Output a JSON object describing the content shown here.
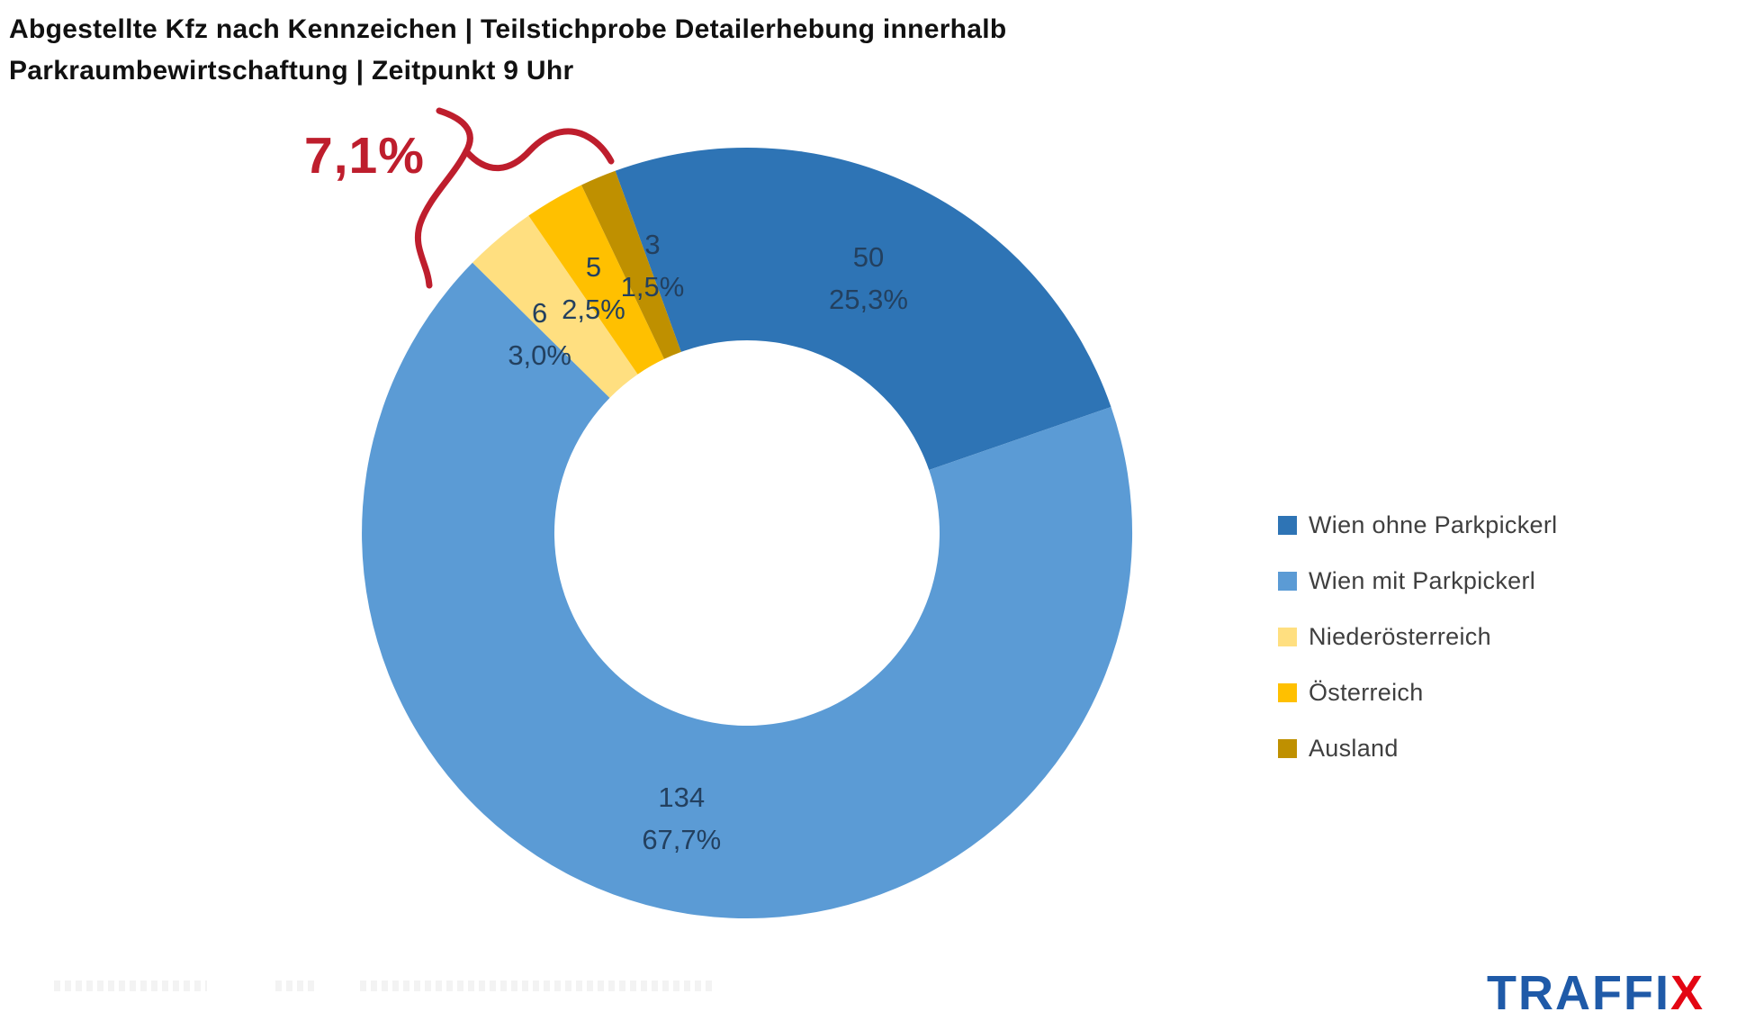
{
  "title": {
    "line1": "Abgestellte Kfz nach Kennzeichen | Teilstichprobe Detailerhebung innerhalb",
    "line2": "Parkraumbewirtschaftung | Zeitpunkt 9 Uhr"
  },
  "annotation": {
    "text": "7,1%",
    "color": "#BE1E2D",
    "covers": [
      "Niederösterreich",
      "Österreich",
      "Ausland"
    ]
  },
  "chart_data": {
    "type": "pie",
    "subtype": "donut",
    "direction": "clockwise",
    "start_angle_deg": -20,
    "total": 198,
    "legend_position": "right",
    "segments": [
      {
        "label": "Wien ohne Parkpickerl",
        "value": 50,
        "pct_label": "25,3%",
        "color": "#2E74B5"
      },
      {
        "label": "Wien mit Parkpickerl",
        "value": 134,
        "pct_label": "67,7%",
        "color": "#5B9BD5"
      },
      {
        "label": "Niederösterreich",
        "value": 6,
        "pct_label": "3,0%",
        "color": "#FFDF80"
      },
      {
        "label": "Österreich",
        "value": 5,
        "pct_label": "2,5%",
        "color": "#FFC000"
      },
      {
        "label": "Ausland",
        "value": 3,
        "pct_label": "1,5%",
        "color": "#BF9000"
      }
    ],
    "label_text_color": "#23405F"
  },
  "logo": {
    "text_blue": "TRAFFI",
    "text_red": "X"
  }
}
